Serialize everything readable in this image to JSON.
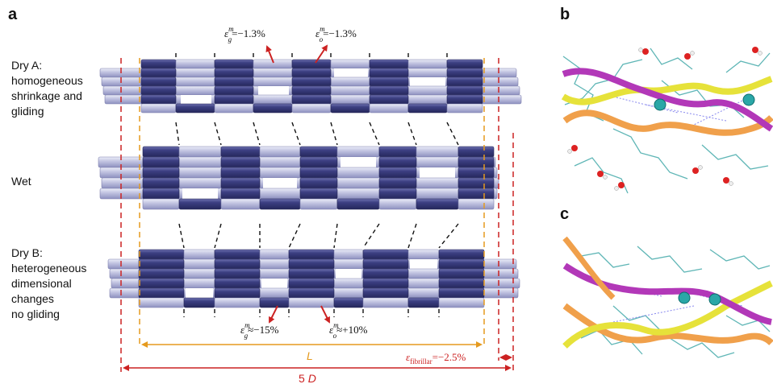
{
  "panel_a": {
    "letter": "a",
    "rows": [
      {
        "label_lines": [
          "Dry A:",
          "homogeneous",
          "shrinkage and",
          "gliding"
        ]
      },
      {
        "label_lines": [
          "Wet"
        ]
      },
      {
        "label_lines": [
          "Dry B:",
          "heterogeneous",
          "dimensional",
          "changes",
          "no gliding"
        ]
      }
    ],
    "annotations": {
      "eps_g_top": {
        "sym": "ε",
        "sup": "m",
        "sub": "g",
        "val": "=−1.3%"
      },
      "eps_o_top": {
        "sym": "ε",
        "sup": "m",
        "sub": "o",
        "val": "=−1.3%"
      },
      "eps_g_bottom": {
        "sym": "ε",
        "sup": "m",
        "sub": "g",
        "val": "≈−15%"
      },
      "eps_o_bottom": {
        "sym": "ε",
        "sup": "m",
        "sub": "o",
        "val": "≈+10%"
      },
      "eps_fibrillar": {
        "sym": "ε",
        "sub": "fibrillar",
        "val": "=−2.5%"
      }
    },
    "dimension_L": "L",
    "dimension_5D": {
      "prefix": "5 ",
      "var": "D"
    },
    "colors": {
      "gap": "#3b3d7e",
      "overlap": "#b7b9d9",
      "orange": "#e59a1e",
      "red": "#cc2222"
    }
  },
  "panel_b": {
    "letter": "b"
  },
  "panel_c": {
    "letter": "c"
  }
}
